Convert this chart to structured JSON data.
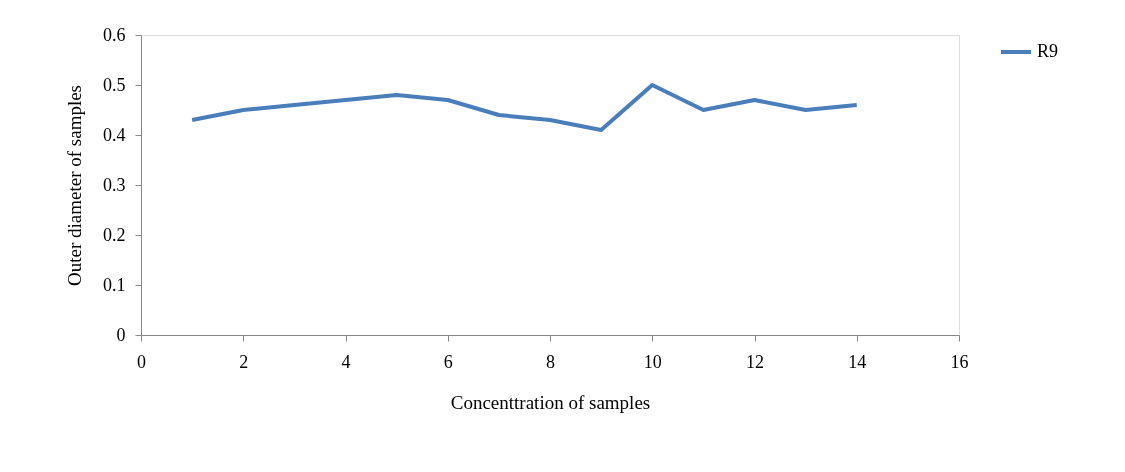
{
  "chart_data": {
    "type": "line",
    "xlabel": "Concenttration of samples",
    "ylabel": "Outer diameter of samples",
    "x": [
      1,
      2,
      3,
      4,
      5,
      6,
      7,
      8,
      9,
      10,
      11,
      12,
      13,
      14
    ],
    "series": [
      {
        "name": "R9",
        "color": "#4a7ebb",
        "values": [
          0.43,
          0.45,
          0.46,
          0.47,
          0.48,
          0.47,
          0.44,
          0.43,
          0.41,
          0.5,
          0.45,
          0.47,
          0.45,
          0.46
        ]
      }
    ],
    "xlim": [
      0,
      16
    ],
    "xticks": [
      0,
      2,
      4,
      6,
      8,
      10,
      12,
      14,
      16
    ],
    "ylim": [
      0,
      0.6
    ],
    "yticks": [
      0,
      0.1,
      0.2,
      0.3,
      0.4,
      0.5,
      0.6
    ],
    "grid": false,
    "legend": "right",
    "marker": "none",
    "line_style": "solid"
  }
}
